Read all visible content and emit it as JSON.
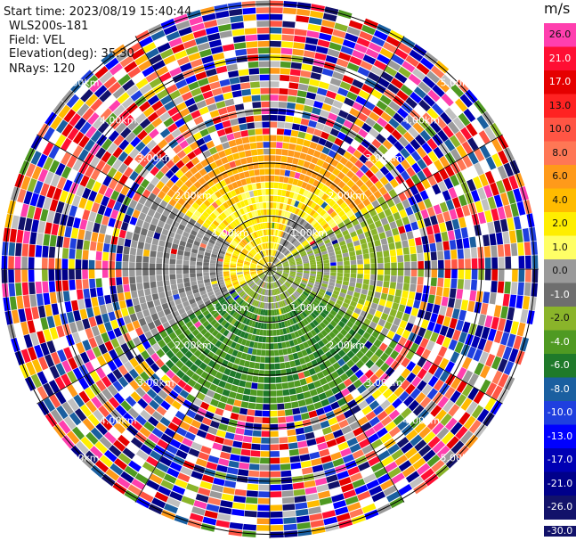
{
  "header": {
    "start_time": "Start time: 2023/08/19 15:40:44",
    "instrument": "WLS200s-181",
    "field": "Field: VEL",
    "elevation": "Elevation(deg): 35.30",
    "nrays": "NRays: 120"
  },
  "range_labels": [
    "1.00km",
    "2.00km",
    "3.00km",
    "4.00km",
    "5.00km"
  ],
  "colorbar": {
    "unit": "m/s",
    "ticks": [
      "26.0",
      "21.0",
      "17.0",
      "13.0",
      "10.0",
      "8.0",
      "6.0",
      "4.0",
      "2.0",
      "1.0",
      "0.0",
      "-1.0",
      "-2.0",
      "-4.0",
      "-6.0",
      "-8.0",
      "-10.0",
      "-13.0",
      "-17.0",
      "-21.0",
      "-26.0",
      "-30.0"
    ],
    "colors": [
      "#ff3fae",
      "#ff0f33",
      "#e50000",
      "#ff2222",
      "#ff5544",
      "#ff7755",
      "#ff9a1a",
      "#ffbb00",
      "#ffee00",
      "#ffff66",
      "#9a9a9a",
      "#6e6e6e",
      "#8ab42a",
      "#4f9a22",
      "#1f7a2a",
      "#1a5fa0",
      "#1f3fdf",
      "#0000ff",
      "#0000b4",
      "#00008a",
      "#12126a"
    ]
  }
}
